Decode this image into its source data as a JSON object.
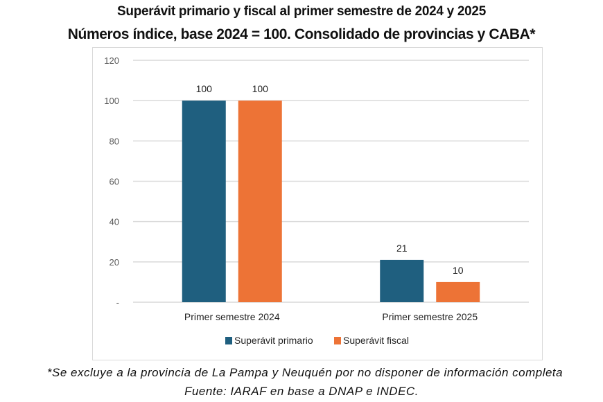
{
  "chart_data": {
    "type": "bar",
    "title": "Superávit primario y fiscal al primer semestre de 2024 y 2025",
    "subtitle": "Números índice, base 2024 = 100. Consolidado de provincias y CABA*",
    "categories": [
      "Primer semestre 2024",
      "Primer semestre 2025"
    ],
    "series": [
      {
        "name": "Superávit primario",
        "values": [
          100,
          21
        ],
        "color": "#1f5f7f"
      },
      {
        "name": "Superávit fiscal",
        "values": [
          100,
          10
        ],
        "color": "#ed7336"
      }
    ],
    "ylim": [
      0,
      120
    ],
    "yticks": [
      0,
      20,
      40,
      60,
      80,
      100,
      120
    ],
    "ytick_labels": [
      "-",
      "20",
      "40",
      "60",
      "80",
      "100",
      "120"
    ],
    "grid": true,
    "legend": "bottom",
    "data_labels": true
  },
  "footnote": "*Se excluye a la provincia de La Pampa y Neuquén por no disponer de información completa",
  "source": "Fuente:  IARAF en base a DNAP e INDEC."
}
